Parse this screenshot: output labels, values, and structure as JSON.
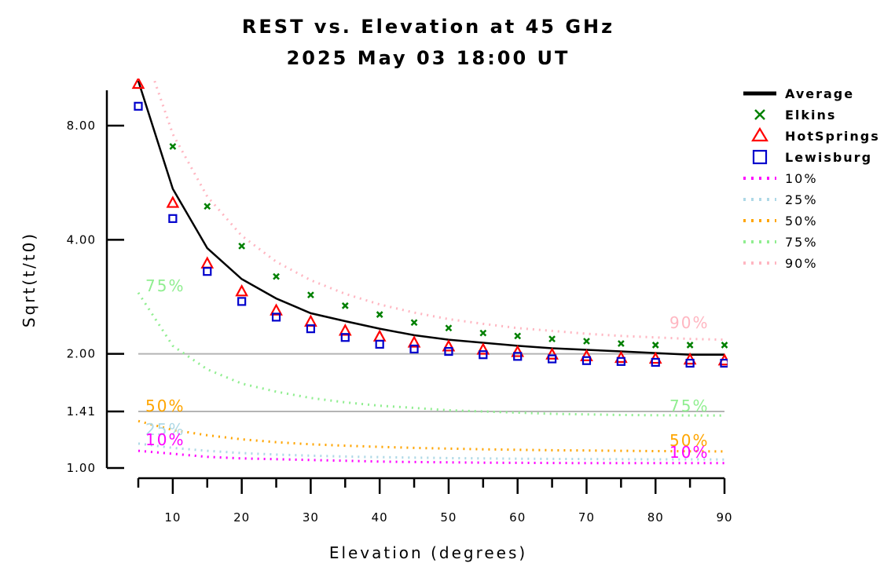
{
  "chart_data": {
    "type": "line",
    "title": "REST vs. Elevation at 45 GHz",
    "subtitle": "2025 May 03 18:00 UT",
    "xlabel": "Elevation (degrees)",
    "ylabel": "Sqrt(t/t0)",
    "xlim": [
      5,
      90
    ],
    "ylim": [
      1.0,
      10.4
    ],
    "yscale": "log",
    "x_ticks": [
      10,
      20,
      30,
      40,
      50,
      60,
      70,
      80,
      90
    ],
    "y_ticks": [
      {
        "value": 1.0,
        "label": "1.00"
      },
      {
        "value": 1.41,
        "label": "1.41"
      },
      {
        "value": 2.0,
        "label": "2.00"
      },
      {
        "value": 4.0,
        "label": "4.00"
      },
      {
        "value": 8.0,
        "label": "8.00"
      }
    ],
    "reference_lines": [
      1.41,
      2.0
    ],
    "x": [
      5,
      10,
      15,
      20,
      25,
      30,
      35,
      40,
      45,
      50,
      55,
      60,
      65,
      70,
      75,
      80,
      85,
      90
    ],
    "series": [
      {
        "name": "Average",
        "style": "solid",
        "color": "#000000",
        "values": [
          10.5,
          5.45,
          3.8,
          3.15,
          2.8,
          2.56,
          2.44,
          2.33,
          2.24,
          2.18,
          2.14,
          2.1,
          2.07,
          2.05,
          2.03,
          2.01,
          1.99,
          1.99
        ]
      },
      {
        "name": "Elkins",
        "marker": "x",
        "color": "#008000",
        "values": [
          null,
          7.05,
          4.9,
          3.85,
          3.2,
          2.86,
          2.68,
          2.54,
          2.42,
          2.34,
          2.27,
          2.23,
          2.19,
          2.16,
          2.13,
          2.11,
          2.11,
          2.11
        ]
      },
      {
        "name": "HotSprings",
        "marker": "triangle",
        "color": "#ff0000",
        "values": [
          10.3,
          5.0,
          3.46,
          2.92,
          2.6,
          2.43,
          2.3,
          2.22,
          2.14,
          2.09,
          2.05,
          2.02,
          1.99,
          1.97,
          1.95,
          1.94,
          1.93,
          1.92
        ]
      },
      {
        "name": "Lewisburg",
        "marker": "square",
        "color": "#0000cc",
        "values": [
          9.0,
          4.55,
          3.3,
          2.75,
          2.5,
          2.33,
          2.21,
          2.12,
          2.06,
          2.03,
          1.99,
          1.97,
          1.94,
          1.92,
          1.91,
          1.9,
          1.89,
          1.89
        ]
      },
      {
        "name": "10%",
        "style": "dotted",
        "color": "#ff00ff",
        "values": [
          1.11,
          1.09,
          1.07,
          1.06,
          1.055,
          1.05,
          1.045,
          1.04,
          1.037,
          1.035,
          1.033,
          1.032,
          1.031,
          1.03,
          1.03,
          1.03,
          1.03,
          1.03
        ]
      },
      {
        "name": "25%",
        "style": "dotted",
        "color": "#add8e6",
        "values": [
          1.16,
          1.13,
          1.11,
          1.095,
          1.085,
          1.078,
          1.072,
          1.068,
          1.065,
          1.062,
          1.06,
          1.058,
          1.057,
          1.056,
          1.055,
          1.054,
          1.054,
          1.053
        ]
      },
      {
        "name": "50%",
        "style": "dotted",
        "color": "#ffa500",
        "values": [
          1.33,
          1.26,
          1.22,
          1.19,
          1.17,
          1.155,
          1.145,
          1.137,
          1.13,
          1.125,
          1.12,
          1.117,
          1.114,
          1.112,
          1.11,
          1.108,
          1.107,
          1.106
        ]
      },
      {
        "name": "75%",
        "style": "dotted",
        "color": "#90ee90",
        "values": [
          2.9,
          2.1,
          1.82,
          1.67,
          1.59,
          1.53,
          1.49,
          1.46,
          1.44,
          1.42,
          1.41,
          1.4,
          1.39,
          1.385,
          1.38,
          1.378,
          1.376,
          1.375
        ]
      },
      {
        "name": "90%",
        "style": "dotted",
        "color": "#ffb6c1",
        "values": [
          14.0,
          7.6,
          5.2,
          4.1,
          3.5,
          3.13,
          2.88,
          2.7,
          2.57,
          2.47,
          2.4,
          2.34,
          2.3,
          2.26,
          2.23,
          2.21,
          2.19,
          2.18
        ]
      }
    ],
    "annotations": [
      {
        "text": "75%",
        "color": "#90ee90"
      },
      {
        "text": "50%",
        "color": "#ffa500"
      },
      {
        "text": "25%",
        "color": "#add8e6"
      },
      {
        "text": "10%",
        "color": "#ff00ff"
      },
      {
        "text": "90%",
        "color": "#ffb6c1"
      },
      {
        "text": "75%",
        "color": "#90ee90"
      },
      {
        "text": "50%",
        "color": "#ffa500"
      },
      {
        "text": "10%",
        "color": "#ff00ff"
      }
    ],
    "legend": {
      "placement": "right",
      "entries": [
        {
          "label": "Average",
          "swatch": "line",
          "color": "#000000"
        },
        {
          "label": "Elkins",
          "swatch": "x",
          "color": "#008000"
        },
        {
          "label": "HotSprings",
          "swatch": "triangle",
          "color": "#ff0000"
        },
        {
          "label": "Lewisburg",
          "swatch": "square",
          "color": "#0000cc"
        },
        {
          "label": "10%",
          "swatch": "dotted",
          "color": "#ff00ff"
        },
        {
          "label": "25%",
          "swatch": "dotted",
          "color": "#add8e6"
        },
        {
          "label": "50%",
          "swatch": "dotted",
          "color": "#ffa500"
        },
        {
          "label": "75%",
          "swatch": "dotted",
          "color": "#90ee90"
        },
        {
          "label": "90%",
          "swatch": "dotted",
          "color": "#ffb6c1"
        }
      ]
    }
  }
}
